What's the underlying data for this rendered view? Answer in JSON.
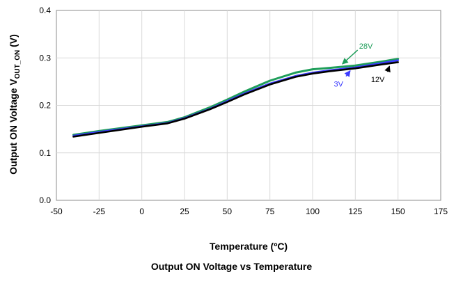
{
  "chart_data": {
    "type": "line",
    "title": "",
    "caption": "Output ON Voltage vs Temperature",
    "xlabel": "Temperature (ºC)",
    "ylabel_main": "Output ON Voltage V",
    "ylabel_sub": "OUT_ON",
    "ylabel_unit": " (V)",
    "xlim": [
      -50,
      175
    ],
    "ylim": [
      0.0,
      0.4
    ],
    "xticks": [
      -50,
      -25,
      0,
      25,
      50,
      75,
      100,
      125,
      150,
      175
    ],
    "xtick_labels": [
      "-50",
      "-25",
      "0",
      "25",
      "50",
      "75",
      "100",
      "125",
      "150",
      "175"
    ],
    "yticks": [
      0.0,
      0.1,
      0.2,
      0.3,
      0.4
    ],
    "ytick_labels": [
      "0.0",
      "0.1",
      "0.2",
      "0.3",
      "0.4"
    ],
    "grid": true,
    "series": [
      {
        "name": "3V",
        "color": "#3b3bff",
        "x": [
          -40,
          -25,
          0,
          15,
          25,
          40,
          50,
          60,
          75,
          90,
          100,
          110,
          125,
          140,
          150
        ],
        "y": [
          0.136,
          0.144,
          0.156,
          0.163,
          0.173,
          0.193,
          0.209,
          0.225,
          0.246,
          0.262,
          0.269,
          0.274,
          0.28,
          0.289,
          0.295
        ]
      },
      {
        "name": "12V",
        "color": "#000000",
        "x": [
          -40,
          -25,
          0,
          15,
          25,
          40,
          50,
          60,
          75,
          90,
          100,
          110,
          125,
          140,
          150
        ],
        "y": [
          0.134,
          0.142,
          0.155,
          0.162,
          0.172,
          0.192,
          0.207,
          0.223,
          0.244,
          0.26,
          0.267,
          0.272,
          0.278,
          0.286,
          0.291
        ]
      },
      {
        "name": "28V",
        "color": "#1f9e5a",
        "x": [
          -40,
          -25,
          0,
          15,
          25,
          40,
          50,
          60,
          75,
          90,
          100,
          110,
          125,
          140,
          150
        ],
        "y": [
          0.138,
          0.146,
          0.158,
          0.165,
          0.175,
          0.196,
          0.212,
          0.229,
          0.252,
          0.269,
          0.276,
          0.279,
          0.284,
          0.292,
          0.298
        ]
      }
    ],
    "annotations": [
      {
        "text": "28V",
        "color": "#1f9e5a",
        "series": "28V",
        "target_x": 117
      },
      {
        "text": "3V",
        "color": "#3b3bff",
        "series": "3V",
        "target_x": 122
      },
      {
        "text": "12V",
        "color": "#000000",
        "series": "12V",
        "target_x": 145
      }
    ]
  }
}
